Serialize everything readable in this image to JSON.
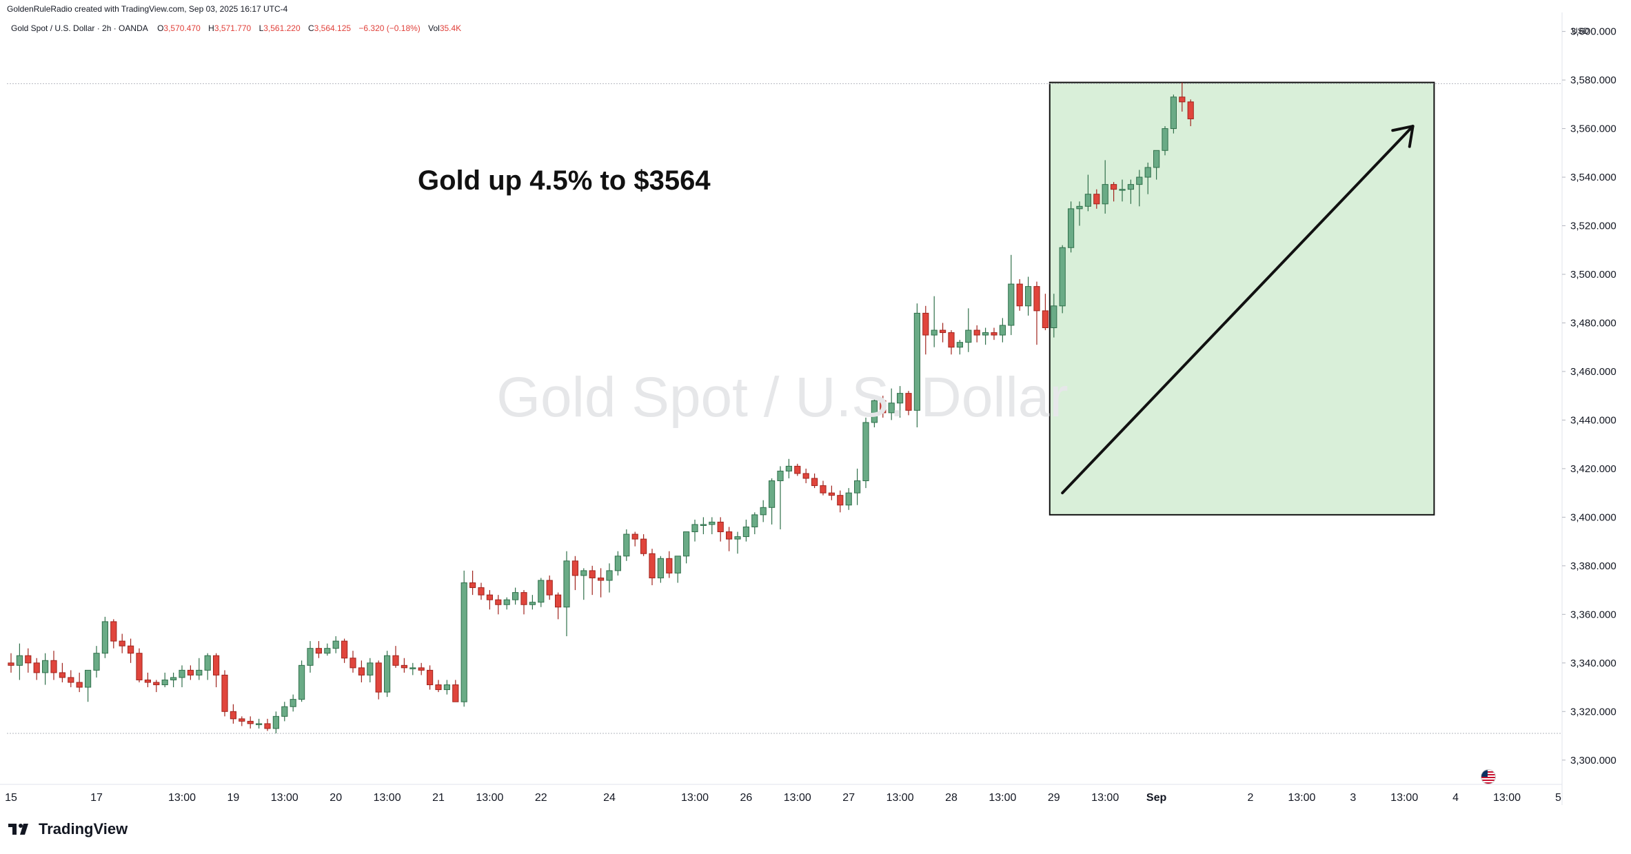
{
  "header": {
    "credit": "GoldenRuleRadio created with TradingView.com, Sep 03, 2025 16:17 UTC-4",
    "symbol": "Gold Spot / U.S. Dollar · 2h · OANDA",
    "ohlc": [
      {
        "k": "O",
        "v": "3,570.470"
      },
      {
        "k": "H",
        "v": "3,571.770"
      },
      {
        "k": "L",
        "v": "3,561.220"
      },
      {
        "k": "C",
        "v": "3,564.125"
      },
      {
        "k": "",
        "v": "−6.320 (−0.18%)"
      },
      {
        "k": "Vol",
        "v": "35.4K"
      }
    ]
  },
  "watermark": "Gold Spot / U.S. Dollar",
  "annotation": "Gold up 4.5% to $3564",
  "brand": {
    "name": "TradingView"
  },
  "icons": {
    "brand": "tradingview-logo-icon",
    "flag": "us-flag-icon"
  },
  "colors": {
    "up": "#6aab86",
    "down": "#e0453c",
    "up_border": "#2f6f4a",
    "down_border": "#a0231c",
    "highlight": "#d9efd9",
    "grid": "#e0e3eb"
  },
  "chart_data": {
    "type": "candlestick",
    "currency": "USD",
    "ylim": [
      3290,
      3605
    ],
    "y_ticks": [
      3300,
      3320,
      3340,
      3360,
      3380,
      3400,
      3420,
      3440,
      3460,
      3480,
      3500,
      3520,
      3540,
      3560,
      3580,
      3600
    ],
    "y_tick_labels": [
      "3,300.000",
      "3,320.000",
      "3,340.000",
      "3,360.000",
      "3,380.000",
      "3,400.000",
      "3,420.000",
      "3,440.000",
      "3,460.000",
      "3,480.000",
      "3,500.000",
      "3,520.000",
      "3,540.000",
      "3,560.000",
      "3,580.000",
      "3,600.000"
    ],
    "x_tick_labels": [
      {
        "bar": 0,
        "label": "15"
      },
      {
        "bar": 10,
        "label": "17"
      },
      {
        "bar": 20,
        "label": "13:00"
      },
      {
        "bar": 26,
        "label": "19"
      },
      {
        "bar": 32,
        "label": "13:00"
      },
      {
        "bar": 38,
        "label": "20"
      },
      {
        "bar": 44,
        "label": "13:00"
      },
      {
        "bar": 50,
        "label": "21"
      },
      {
        "bar": 56,
        "label": "13:00"
      },
      {
        "bar": 62,
        "label": "22"
      },
      {
        "bar": 70,
        "label": "24"
      },
      {
        "bar": 80,
        "label": "13:00"
      },
      {
        "bar": 86,
        "label": "26"
      },
      {
        "bar": 92,
        "label": "13:00"
      },
      {
        "bar": 98,
        "label": "27"
      },
      {
        "bar": 104,
        "label": "13:00"
      },
      {
        "bar": 110,
        "label": "28"
      },
      {
        "bar": 116,
        "label": "13:00"
      },
      {
        "bar": 122,
        "label": "29"
      },
      {
        "bar": 128,
        "label": "13:00"
      },
      {
        "bar": 134,
        "label": "Sep"
      },
      {
        "bar": 145,
        "label": "2"
      },
      {
        "bar": 151,
        "label": "13:00"
      },
      {
        "bar": 157,
        "label": "3"
      },
      {
        "bar": 163,
        "label": "13:00"
      },
      {
        "bar": 169,
        "label": "4"
      },
      {
        "bar": 175,
        "label": "13:00"
      },
      {
        "bar": 181,
        "label": "5"
      }
    ],
    "reference_lines": [
      3578.5,
      3311
    ],
    "highlight": {
      "from_bar": 122,
      "to_bar": 166,
      "low": 3401,
      "high": 3579
    },
    "arrow": {
      "from_bar": 123,
      "from_price": 3410,
      "to_bar": 164,
      "to_price": 3561
    },
    "candles": [
      [
        3340,
        3344,
        3336,
        3339
      ],
      [
        3339,
        3348,
        3333,
        3343
      ],
      [
        3343,
        3346,
        3336,
        3340
      ],
      [
        3340,
        3342,
        3333,
        3336
      ],
      [
        3336,
        3344,
        3331,
        3341
      ],
      [
        3341,
        3345,
        3333,
        3336
      ],
      [
        3336,
        3340,
        3332,
        3334
      ],
      [
        3334,
        3337,
        3330,
        3332
      ],
      [
        3332,
        3336,
        3328,
        3330
      ],
      [
        3330,
        3335,
        3324,
        3337
      ],
      [
        3337,
        3347,
        3334,
        3344
      ],
      [
        3344,
        3359,
        3342,
        3357
      ],
      [
        3357,
        3358,
        3346,
        3349
      ],
      [
        3349,
        3352,
        3344,
        3347
      ],
      [
        3347,
        3350,
        3340,
        3344
      ],
      [
        3344,
        3346,
        3332,
        3333
      ],
      [
        3333,
        3336,
        3330,
        3332
      ],
      [
        3332,
        3333,
        3328,
        3331
      ],
      [
        3331,
        3336,
        3330,
        3333
      ],
      [
        3333,
        3336,
        3330,
        3334
      ],
      [
        3334,
        3339,
        3330,
        3337
      ],
      [
        3337,
        3339,
        3333,
        3335
      ],
      [
        3335,
        3342,
        3333,
        3337
      ],
      [
        3337,
        3344,
        3333,
        3343
      ],
      [
        3343,
        3344,
        3330,
        3335
      ],
      [
        3335,
        3337,
        3318,
        3320
      ],
      [
        3320,
        3323,
        3315,
        3317
      ],
      [
        3317,
        3318,
        3314,
        3316
      ],
      [
        3316,
        3318,
        3313,
        3315
      ],
      [
        3315,
        3317,
        3313,
        3315
      ],
      [
        3315,
        3317,
        3312,
        3313
      ],
      [
        3313,
        3320,
        3311,
        3318
      ],
      [
        3318,
        3324,
        3316,
        3322
      ],
      [
        3322,
        3327,
        3320,
        3325
      ],
      [
        3325,
        3341,
        3324,
        3339
      ],
      [
        3339,
        3349,
        3336,
        3346
      ],
      [
        3346,
        3349,
        3342,
        3344
      ],
      [
        3344,
        3348,
        3343,
        3346
      ],
      [
        3346,
        3351,
        3344,
        3349
      ],
      [
        3349,
        3350,
        3340,
        3342
      ],
      [
        3342,
        3345,
        3336,
        3338
      ],
      [
        3338,
        3341,
        3332,
        3335
      ],
      [
        3335,
        3342,
        3332,
        3340
      ],
      [
        3340,
        3341,
        3325,
        3328
      ],
      [
        3328,
        3345,
        3326,
        3343
      ],
      [
        3343,
        3347,
        3338,
        3339
      ],
      [
        3339,
        3342,
        3336,
        3338
      ],
      [
        3338,
        3340,
        3335,
        3338
      ],
      [
        3338,
        3340,
        3335,
        3337
      ],
      [
        3337,
        3339,
        3329,
        3331
      ],
      [
        3331,
        3333,
        3328,
        3329
      ],
      [
        3329,
        3333,
        3327,
        3331
      ],
      [
        3331,
        3333,
        3325,
        3324
      ],
      [
        3324,
        3378,
        3322,
        3373
      ],
      [
        3373,
        3378,
        3368,
        3371
      ],
      [
        3371,
        3373,
        3366,
        3368
      ],
      [
        3368,
        3370,
        3362,
        3366
      ],
      [
        3366,
        3368,
        3360,
        3364
      ],
      [
        3364,
        3367,
        3362,
        3366
      ],
      [
        3366,
        3371,
        3364,
        3369
      ],
      [
        3369,
        3370,
        3360,
        3364
      ],
      [
        3364,
        3368,
        3362,
        3365
      ],
      [
        3365,
        3375,
        3363,
        3374
      ],
      [
        3374,
        3376,
        3366,
        3368
      ],
      [
        3368,
        3369,
        3358,
        3363
      ],
      [
        3363,
        3386,
        3351,
        3382
      ],
      [
        3382,
        3384,
        3370,
        3376
      ],
      [
        3376,
        3379,
        3366,
        3378
      ],
      [
        3378,
        3380,
        3368,
        3375
      ],
      [
        3375,
        3379,
        3367,
        3374
      ],
      [
        3374,
        3381,
        3369,
        3378
      ],
      [
        3378,
        3386,
        3376,
        3384
      ],
      [
        3384,
        3395,
        3382,
        3393
      ],
      [
        3393,
        3394,
        3388,
        3391
      ],
      [
        3391,
        3393,
        3384,
        3385
      ],
      [
        3385,
        3387,
        3372,
        3375
      ],
      [
        3375,
        3384,
        3373,
        3383
      ],
      [
        3383,
        3386,
        3375,
        3377
      ],
      [
        3377,
        3384,
        3373,
        3384
      ],
      [
        3384,
        3391,
        3381,
        3394
      ],
      [
        3394,
        3399,
        3390,
        3397
      ],
      [
        3397,
        3400,
        3393,
        3397
      ],
      [
        3397,
        3400,
        3393,
        3398
      ],
      [
        3398,
        3400,
        3390,
        3394
      ],
      [
        3394,
        3396,
        3386,
        3391
      ],
      [
        3391,
        3394,
        3385,
        3392
      ],
      [
        3392,
        3399,
        3390,
        3396
      ],
      [
        3396,
        3402,
        3393,
        3401
      ],
      [
        3401,
        3407,
        3398,
        3404
      ],
      [
        3404,
        3416,
        3397,
        3415
      ],
      [
        3415,
        3421,
        3395,
        3419
      ],
      [
        3419,
        3424,
        3416,
        3421
      ],
      [
        3421,
        3422,
        3417,
        3418
      ],
      [
        3418,
        3420,
        3414,
        3416
      ],
      [
        3416,
        3418,
        3412,
        3413
      ],
      [
        3413,
        3415,
        3409,
        3410
      ],
      [
        3410,
        3413,
        3407,
        3409
      ],
      [
        3409,
        3411,
        3402,
        3405
      ],
      [
        3405,
        3412,
        3403,
        3410
      ],
      [
        3410,
        3420,
        3405,
        3415
      ],
      [
        3415,
        3441,
        3412,
        3439
      ],
      [
        3439,
        3450,
        3437,
        3448
      ],
      [
        3448,
        3450,
        3441,
        3443
      ],
      [
        3443,
        3453,
        3440,
        3447
      ],
      [
        3447,
        3454,
        3441,
        3451
      ],
      [
        3451,
        3452,
        3442,
        3444
      ],
      [
        3444,
        3488,
        3437,
        3484
      ],
      [
        3484,
        3487,
        3467,
        3475
      ],
      [
        3475,
        3491,
        3470,
        3477
      ],
      [
        3477,
        3480,
        3472,
        3476
      ],
      [
        3476,
        3477,
        3467,
        3470
      ],
      [
        3470,
        3473,
        3467,
        3472
      ],
      [
        3472,
        3486,
        3468,
        3477
      ],
      [
        3477,
        3479,
        3472,
        3475
      ],
      [
        3475,
        3478,
        3471,
        3476
      ],
      [
        3476,
        3478,
        3473,
        3475
      ],
      [
        3475,
        3482,
        3472,
        3479
      ],
      [
        3479,
        3508,
        3475,
        3496
      ],
      [
        3496,
        3498,
        3485,
        3487
      ],
      [
        3487,
        3499,
        3483,
        3495
      ],
      [
        3495,
        3497,
        3471,
        3485
      ],
      [
        3485,
        3492,
        3477,
        3478
      ],
      [
        3478,
        3492,
        3474,
        3487
      ],
      [
        3487,
        3512,
        3484,
        3511
      ],
      [
        3511,
        3530,
        3509,
        3527
      ],
      [
        3527,
        3530,
        3520,
        3528
      ],
      [
        3528,
        3541,
        3526,
        3533
      ],
      [
        3533,
        3535,
        3527,
        3529
      ],
      [
        3529,
        3547,
        3525,
        3537
      ],
      [
        3537,
        3538,
        3530,
        3535
      ],
      [
        3535,
        3539,
        3530,
        3535
      ],
      [
        3535,
        3539,
        3529,
        3537
      ],
      [
        3537,
        3543,
        3528,
        3540
      ],
      [
        3540,
        3546,
        3533,
        3544
      ],
      [
        3544,
        3548,
        3539,
        3551
      ],
      [
        3551,
        3561,
        3549,
        3560
      ],
      [
        3560,
        3574,
        3558,
        3573
      ],
      [
        3573,
        3579,
        3567,
        3571
      ],
      [
        3571,
        3572,
        3561,
        3564
      ]
    ]
  }
}
